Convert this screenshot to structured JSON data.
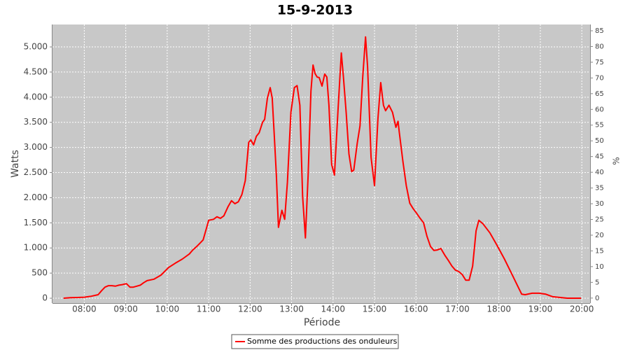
{
  "chart_data": {
    "type": "line",
    "title": "15-9-2013",
    "x_label": "Période",
    "y_label": "Watts",
    "y2_label": "%",
    "x": [
      "07:30",
      "07:40",
      "07:50",
      "08:00",
      "08:10",
      "08:20",
      "08:25",
      "08:30",
      "08:35",
      "08:40",
      "08:45",
      "08:50",
      "08:55",
      "09:01",
      "09:06",
      "09:11",
      "09:16",
      "09:21",
      "09:26",
      "09:31",
      "09:41",
      "09:51",
      "10:02",
      "10:12",
      "10:22",
      "10:32",
      "10:37",
      "10:42",
      "10:47",
      "10:52",
      "10:57",
      "11:00",
      "11:07",
      "11:12",
      "11:17",
      "11:22",
      "11:28",
      "11:33",
      "11:38",
      "11:43",
      "11:48",
      "11:53",
      "11:58",
      "12:01",
      "12:05",
      "12:09",
      "12:13",
      "12:18",
      "12:21",
      "12:25",
      "12:29",
      "12:32",
      "12:35",
      "12:38",
      "12:41",
      "12:44",
      "12:46",
      "12:50",
      "12:54",
      "12:59",
      "13:04",
      "13:08",
      "13:12",
      "13:16",
      "13:20",
      "13:24",
      "13:28",
      "13:31",
      "13:34",
      "13:37",
      "13:40",
      "13:44",
      "13:48",
      "13:51",
      "13:54",
      "13:58",
      "14:02",
      "14:07",
      "14:12",
      "14:15",
      "14:19",
      "14:23",
      "14:27",
      "14:30",
      "14:35",
      "14:39",
      "14:43",
      "14:47",
      "14:50",
      "14:55",
      "15:00",
      "15:05",
      "15:09",
      "15:13",
      "15:16",
      "15:21",
      "15:26",
      "15:31",
      "15:34",
      "15:36",
      "15:41",
      "15:46",
      "15:51",
      "15:56",
      "16:01",
      "16:06",
      "16:11",
      "16:16",
      "16:21",
      "16:26",
      "16:31",
      "16:36",
      "16:42",
      "16:47",
      "16:52",
      "16:57",
      "17:02",
      "17:07",
      "17:12",
      "17:17",
      "17:22",
      "17:27",
      "17:31",
      "17:37",
      "17:42",
      "17:47",
      "17:57",
      "18:08",
      "18:18",
      "18:28",
      "18:33",
      "18:38",
      "18:48",
      "18:58",
      "19:08",
      "19:18",
      "19:29",
      "19:39",
      "19:59"
    ],
    "series": [
      {
        "name": "Somme des productions des onduleurs",
        "color": "#ff0000",
        "values": [
          0,
          10,
          15,
          20,
          40,
          70,
          150,
          220,
          250,
          250,
          240,
          260,
          270,
          290,
          220,
          220,
          240,
          260,
          310,
          350,
          380,
          460,
          610,
          700,
          780,
          880,
          960,
          1020,
          1090,
          1160,
          1400,
          1550,
          1570,
          1620,
          1590,
          1640,
          1820,
          1940,
          1880,
          1920,
          2060,
          2340,
          3100,
          3150,
          3050,
          3220,
          3290,
          3500,
          3560,
          3980,
          4190,
          3980,
          3220,
          2450,
          1410,
          1620,
          1750,
          1570,
          2310,
          3700,
          4190,
          4230,
          3840,
          2030,
          1200,
          2450,
          4120,
          4640,
          4470,
          4400,
          4390,
          4220,
          4460,
          4400,
          3840,
          2660,
          2450,
          3700,
          4880,
          4400,
          3700,
          2870,
          2520,
          2550,
          3080,
          3430,
          4400,
          5200,
          4610,
          2800,
          2240,
          3570,
          4290,
          3840,
          3730,
          3840,
          3700,
          3400,
          3520,
          3290,
          2730,
          2240,
          1890,
          1780,
          1690,
          1590,
          1500,
          1230,
          1030,
          950,
          960,
          990,
          850,
          750,
          640,
          560,
          530,
          470,
          360,
          360,
          640,
          1340,
          1550,
          1480,
          1390,
          1300,
          1060,
          780,
          500,
          220,
          80,
          70,
          100,
          100,
          80,
          30,
          15,
          0,
          0
        ]
      }
    ],
    "xlim": [
      "07:14",
      "20:12"
    ],
    "xticks": [
      "08:00",
      "09:00",
      "10:00",
      "11:00",
      "12:00",
      "13:00",
      "14:00",
      "15:00",
      "16:00",
      "17:00",
      "18:00",
      "19:00",
      "20:00"
    ],
    "ylim": [
      -97,
      5446
    ],
    "yticks": [
      0,
      500,
      {
        "value": 1000,
        "label": "1.000"
      },
      {
        "value": 1500,
        "label": "1.500"
      },
      {
        "value": 2000,
        "label": "2.000"
      },
      {
        "value": 2500,
        "label": "2.500"
      },
      {
        "value": 3000,
        "label": "3.000"
      },
      {
        "value": 3500,
        "label": "3.500"
      },
      {
        "value": 4000,
        "label": "4.000"
      },
      {
        "value": 4500,
        "label": "4.500"
      },
      {
        "value": 5000,
        "label": "5.000"
      }
    ],
    "y2lim": [
      -1.6,
      87
    ],
    "y2ticks": [
      0,
      5,
      10,
      15,
      20,
      25,
      30,
      35,
      40,
      45,
      50,
      55,
      60,
      65,
      70,
      75,
      80,
      85
    ],
    "grid": true,
    "legend": "bottom"
  }
}
